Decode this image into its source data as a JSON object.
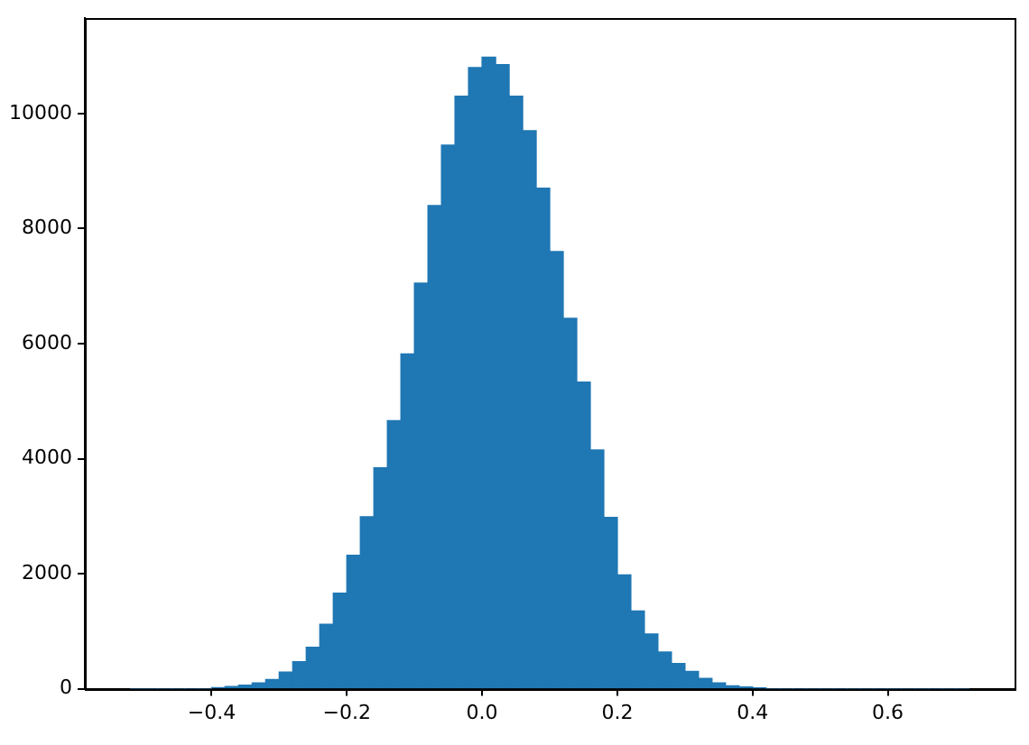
{
  "chart_data": {
    "type": "histogram",
    "color": "#1f77b4",
    "bins": [
      -0.52,
      -0.5,
      -0.48,
      -0.46,
      -0.44,
      -0.42,
      -0.4,
      -0.38,
      -0.36,
      -0.34,
      -0.32,
      -0.3,
      -0.28,
      -0.26,
      -0.24,
      -0.22,
      -0.2,
      -0.18,
      -0.16,
      -0.14,
      -0.12,
      -0.1,
      -0.08,
      -0.06,
      -0.04,
      -0.02,
      0,
      0.02,
      0.04,
      0.06,
      0.08,
      0.1,
      0.12,
      0.14,
      0.16,
      0.18,
      0.2,
      0.22,
      0.24,
      0.26,
      0.28,
      0.3,
      0.32,
      0.34,
      0.36,
      0.38,
      0.4,
      0.42,
      0.44,
      0.46,
      0.48,
      0.5,
      0.52,
      0.54,
      0.56,
      0.58,
      0.6,
      0.62,
      0.64,
      0.66,
      0.68,
      0.7,
      0.72
    ],
    "values": [
      0,
      0,
      0,
      0,
      0,
      0,
      20,
      40,
      60,
      100,
      160,
      290,
      470,
      720,
      1120,
      1660,
      2320,
      2990,
      3840,
      4660,
      5820,
      7050,
      8400,
      9450,
      10300,
      10800,
      10980,
      10850,
      10300,
      9700,
      8700,
      7600,
      6440,
      5330,
      4150,
      2980,
      1980,
      1350,
      950,
      640,
      440,
      300,
      180,
      100,
      50,
      30,
      10,
      0,
      0,
      0,
      0,
      0,
      0,
      0,
      0,
      0,
      0,
      0,
      0,
      0,
      0,
      0
    ],
    "xlim": [
      -0.5875,
      0.7875
    ],
    "xticks": [
      {
        "value": -0.4,
        "label": "−0.4"
      },
      {
        "value": -0.2,
        "label": "−0.2"
      },
      {
        "value": 0,
        "label": "0.0"
      },
      {
        "value": 0.2,
        "label": "0.2"
      },
      {
        "value": 0.4,
        "label": "0.4"
      },
      {
        "value": 0.6,
        "label": "0.6"
      }
    ],
    "ylim": [
      0,
      11660
    ],
    "yticks": [
      0,
      2000,
      4000,
      6000,
      8000,
      10000
    ],
    "grid": false,
    "legend": false
  }
}
